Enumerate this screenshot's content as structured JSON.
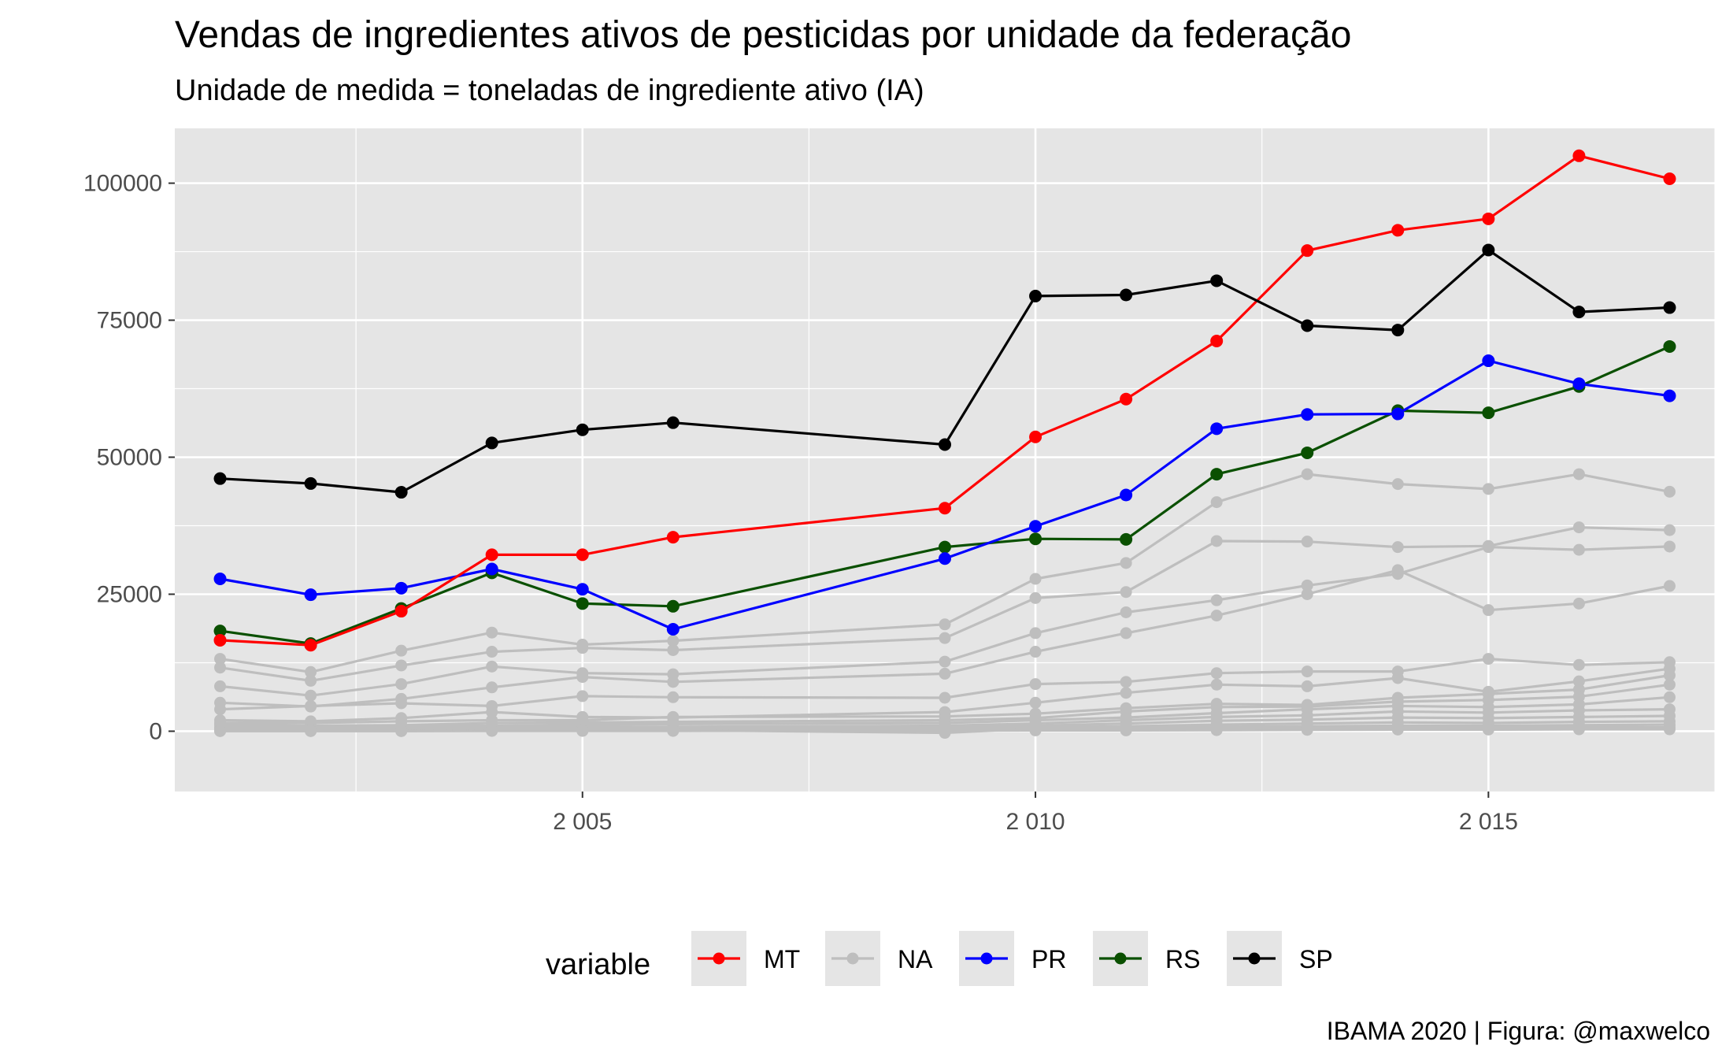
{
  "chart_data": {
    "type": "line",
    "title": "Vendas de ingredientes ativos de pesticidas por unidade da federação",
    "subtitle": "Unidade de medida = toneladas de ingrediente ativo (IA)",
    "caption": "IBAMA 2020 | Figura: @maxwelco",
    "xlabel": "",
    "ylabel": "",
    "xlim": [
      2000.5,
      2017.5
    ],
    "ylim": [
      -11000,
      110000
    ],
    "x_ticks": [
      2005,
      2010,
      2015
    ],
    "x_tick_labels": [
      "2 005",
      "2 010",
      "2 015"
    ],
    "y_ticks": [
      0,
      25000,
      50000,
      75000,
      100000
    ],
    "y_tick_labels": [
      "0",
      "25000",
      "50000",
      "75000",
      "100000"
    ],
    "grid": true,
    "legend": {
      "title": "variable",
      "position": "bottom",
      "entries": [
        "MT",
        "NA",
        "PR",
        "RS",
        "SP"
      ]
    },
    "colors": {
      "MT": "#ff0000",
      "NA": "#bebebe",
      "PR": "#0000ff",
      "RS": "#0a5000",
      "SP": "#000000",
      "panel": "#e5e5e5",
      "gridline": "#ffffff"
    },
    "x": [
      2001,
      2002,
      2003,
      2004,
      2005,
      2006,
      2009,
      2010,
      2011,
      2012,
      2013,
      2014,
      2015,
      2016,
      2017
    ],
    "gray_series": [
      {
        "name": "NA",
        "values": [
          13200,
          10800,
          14700,
          18000,
          15800,
          16500,
          19500,
          27800,
          30700,
          41800,
          46900,
          45100,
          44200,
          46900,
          43700
        ]
      },
      {
        "name": "NA",
        "values": [
          11600,
          9200,
          12000,
          14500,
          15200,
          14800,
          17000,
          24300,
          25400,
          34700,
          34600,
          33600,
          33800,
          37200,
          36700
        ]
      },
      {
        "name": "NA",
        "values": [
          8200,
          6500,
          8600,
          11800,
          10600,
          10400,
          12700,
          17900,
          21700,
          23900,
          26600,
          28700,
          33600,
          33100,
          33700
        ]
      },
      {
        "name": "NA",
        "values": [
          5200,
          4500,
          5900,
          8000,
          9900,
          9000,
          10500,
          14500,
          17900,
          21100,
          25000,
          29400,
          22100,
          23300,
          26500
        ]
      },
      {
        "name": "NA",
        "values": [
          4000,
          4600,
          5100,
          4600,
          6400,
          6200,
          6100,
          8600,
          9000,
          10600,
          10900,
          10900,
          13200,
          12100,
          12600
        ]
      },
      {
        "name": "NA",
        "values": [
          2000,
          1800,
          2400,
          3500,
          2600,
          2500,
          3500,
          5200,
          7000,
          8500,
          8200,
          9700,
          7200,
          9100,
          11400
        ]
      },
      {
        "name": "NA",
        "values": [
          1500,
          1500,
          1800,
          2000,
          2000,
          2600,
          2700,
          3200,
          4200,
          5000,
          4800,
          6100,
          6800,
          7600,
          10200
        ]
      },
      {
        "name": "NA",
        "values": [
          1200,
          1000,
          1100,
          1500,
          1600,
          1700,
          2000,
          2400,
          3600,
          4400,
          4500,
          5400,
          5700,
          6300,
          8500
        ]
      },
      {
        "name": "NA",
        "values": [
          800,
          800,
          900,
          1000,
          1200,
          1300,
          1500,
          2000,
          2500,
          3300,
          4000,
          4600,
          4400,
          4900,
          6200
        ]
      },
      {
        "name": "NA",
        "values": [
          500,
          400,
          500,
          700,
          800,
          800,
          1000,
          1400,
          2000,
          2600,
          2900,
          3600,
          3400,
          3800,
          4000
        ]
      },
      {
        "name": "NA",
        "values": [
          300,
          300,
          300,
          500,
          500,
          600,
          700,
          1000,
          1400,
          1900,
          2100,
          2500,
          2400,
          2600,
          2800
        ]
      },
      {
        "name": "NA",
        "values": [
          200,
          200,
          200,
          300,
          300,
          400,
          500,
          700,
          900,
          1200,
          1400,
          1600,
          1500,
          1700,
          1800
        ]
      },
      {
        "name": "NA",
        "values": [
          100,
          100,
          100,
          200,
          200,
          200,
          -300,
          500,
          600,
          800,
          900,
          1000,
          1000,
          1100,
          1200
        ]
      },
      {
        "name": "NA",
        "values": [
          50,
          50,
          50,
          100,
          100,
          100,
          200,
          300,
          300,
          400,
          500,
          600,
          600,
          700,
          700
        ]
      },
      {
        "name": "NA",
        "values": [
          20,
          20,
          20,
          50,
          50,
          50,
          100,
          150,
          150,
          200,
          250,
          300,
          300,
          350,
          350
        ]
      }
    ],
    "series": [
      {
        "name": "RS",
        "values": [
          18300,
          16000,
          22400,
          28900,
          23300,
          22800,
          33600,
          35100,
          35000,
          46900,
          50800,
          58500,
          58100,
          62900,
          70200
        ]
      },
      {
        "name": "PR",
        "values": [
          27800,
          24900,
          26100,
          29600,
          25900,
          18600,
          31500,
          37400,
          43100,
          55200,
          57800,
          57900,
          67600,
          63400,
          61200
        ]
      },
      {
        "name": "MT",
        "values": [
          16600,
          15700,
          21900,
          32200,
          32200,
          35400,
          40700,
          53700,
          60600,
          71200,
          87700,
          91400,
          93500,
          105000,
          100800
        ]
      },
      {
        "name": "SP",
        "values": [
          46100,
          45200,
          43600,
          52600,
          55000,
          56300,
          52300,
          79400,
          79600,
          82200,
          74000,
          73200,
          87800,
          76500,
          77300
        ]
      }
    ]
  }
}
